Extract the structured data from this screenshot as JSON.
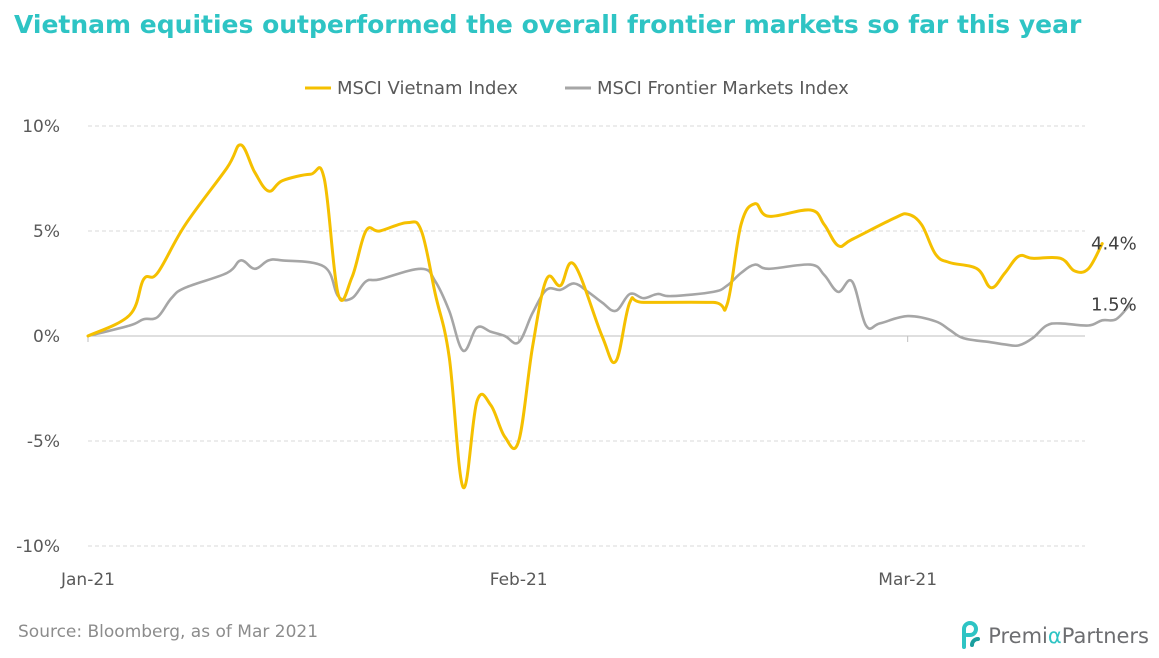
{
  "title": "Vietnam equities outperformed the overall frontier markets so far this year",
  "source": "Source: Bloomberg, as of Mar 2021",
  "logo": {
    "prefix": "Premi",
    "alpha": "α",
    "suffix": "Partners"
  },
  "colors": {
    "title": "#2ec4c4",
    "vietnam": "#f5c000",
    "frontier": "#a6a6a6",
    "grid": "#d9d9d9"
  },
  "chart_data": {
    "type": "line",
    "title": "Vietnam equities outperformed the overall frontier markets so far this year",
    "legend_position": "top",
    "grid": true,
    "x_ticks": [
      {
        "label": "Jan-21",
        "x": 0
      },
      {
        "label": "Feb-21",
        "x": 31
      },
      {
        "label": "Mar-21",
        "x": 59
      }
    ],
    "xlim": [
      0,
      77
    ],
    "y_ticks": [
      {
        "label": "10%",
        "value": 10
      },
      {
        "label": "5%",
        "value": 5
      },
      {
        "label": "0%",
        "value": 0
      },
      {
        "label": "-5%",
        "value": -5
      },
      {
        "label": "-10%",
        "value": -10
      }
    ],
    "ylim": [
      -10,
      10
    ],
    "series": [
      {
        "name": "MSCI Vietnam Index",
        "end_label": "4.4%",
        "points": [
          [
            0,
            0
          ],
          [
            3,
            1.0
          ],
          [
            4,
            2.7
          ],
          [
            5,
            3.0
          ],
          [
            7,
            5.3
          ],
          [
            10,
            8.0
          ],
          [
            11,
            9.1
          ],
          [
            12,
            7.8
          ],
          [
            13,
            6.9
          ],
          [
            14,
            7.4
          ],
          [
            16,
            7.7
          ],
          [
            17,
            7.5
          ],
          [
            18,
            2.0
          ],
          [
            19,
            2.8
          ],
          [
            20,
            5.0
          ],
          [
            21,
            5.0
          ],
          [
            23,
            5.4
          ],
          [
            24,
            5.0
          ],
          [
            25,
            2.0
          ],
          [
            26,
            -1.0
          ],
          [
            27,
            -7.2
          ],
          [
            28,
            -3.1
          ],
          [
            29,
            -3.3
          ],
          [
            30,
            -4.8
          ],
          [
            31,
            -5.0
          ],
          [
            32,
            -0.5
          ],
          [
            33,
            2.7
          ],
          [
            34,
            2.4
          ],
          [
            35,
            3.4
          ],
          [
            37,
            0.0
          ],
          [
            38,
            -1.2
          ],
          [
            39,
            1.6
          ],
          [
            40,
            1.6
          ],
          [
            45,
            1.6
          ],
          [
            46,
            1.5
          ],
          [
            47,
            5.3
          ],
          [
            48,
            6.3
          ],
          [
            49,
            5.7
          ],
          [
            52,
            6.0
          ],
          [
            53,
            5.3
          ],
          [
            54,
            4.3
          ],
          [
            55,
            4.6
          ],
          [
            58,
            5.6
          ],
          [
            59,
            5.8
          ],
          [
            60,
            5.3
          ],
          [
            61,
            3.9
          ],
          [
            62,
            3.5
          ],
          [
            64,
            3.2
          ],
          [
            65,
            2.3
          ],
          [
            66,
            3.0
          ],
          [
            67,
            3.8
          ],
          [
            68,
            3.7
          ],
          [
            70,
            3.7
          ],
          [
            71,
            3.1
          ],
          [
            72,
            3.2
          ],
          [
            73,
            4.4
          ]
        ]
      },
      {
        "name": "MSCI Frontier Markets Index",
        "end_label": "1.5%",
        "points": [
          [
            0,
            0
          ],
          [
            3,
            0.5
          ],
          [
            4,
            0.8
          ],
          [
            5,
            0.9
          ],
          [
            6,
            1.8
          ],
          [
            7,
            2.3
          ],
          [
            10,
            3.0
          ],
          [
            11,
            3.6
          ],
          [
            12,
            3.2
          ],
          [
            13,
            3.6
          ],
          [
            14,
            3.6
          ],
          [
            17,
            3.3
          ],
          [
            18,
            1.9
          ],
          [
            19,
            1.8
          ],
          [
            20,
            2.6
          ],
          [
            21,
            2.7
          ],
          [
            24,
            3.2
          ],
          [
            25,
            2.6
          ],
          [
            26,
            1.2
          ],
          [
            27,
            -0.7
          ],
          [
            28,
            0.4
          ],
          [
            29,
            0.2
          ],
          [
            30,
            0.0
          ],
          [
            31,
            -0.3
          ],
          [
            32,
            1.1
          ],
          [
            33,
            2.2
          ],
          [
            34,
            2.2
          ],
          [
            35,
            2.5
          ],
          [
            36,
            2.1
          ],
          [
            37,
            1.6
          ],
          [
            38,
            1.2
          ],
          [
            39,
            2.0
          ],
          [
            40,
            1.8
          ],
          [
            41,
            2.0
          ],
          [
            42,
            1.9
          ],
          [
            45,
            2.1
          ],
          [
            46,
            2.4
          ],
          [
            47,
            3.0
          ],
          [
            48,
            3.4
          ],
          [
            49,
            3.2
          ],
          [
            52,
            3.4
          ],
          [
            53,
            2.9
          ],
          [
            54,
            2.1
          ],
          [
            55,
            2.6
          ],
          [
            56,
            0.5
          ],
          [
            57,
            0.6
          ],
          [
            59,
            0.95
          ],
          [
            61,
            0.7
          ],
          [
            62,
            0.3
          ],
          [
            63,
            -0.1
          ],
          [
            65,
            -0.3
          ],
          [
            66,
            -0.4
          ],
          [
            67,
            -0.45
          ],
          [
            68,
            -0.1
          ],
          [
            69,
            0.5
          ],
          [
            70,
            0.6
          ],
          [
            72,
            0.5
          ],
          [
            73,
            0.75
          ],
          [
            74,
            0.8
          ],
          [
            75,
            1.5
          ]
        ]
      }
    ]
  }
}
